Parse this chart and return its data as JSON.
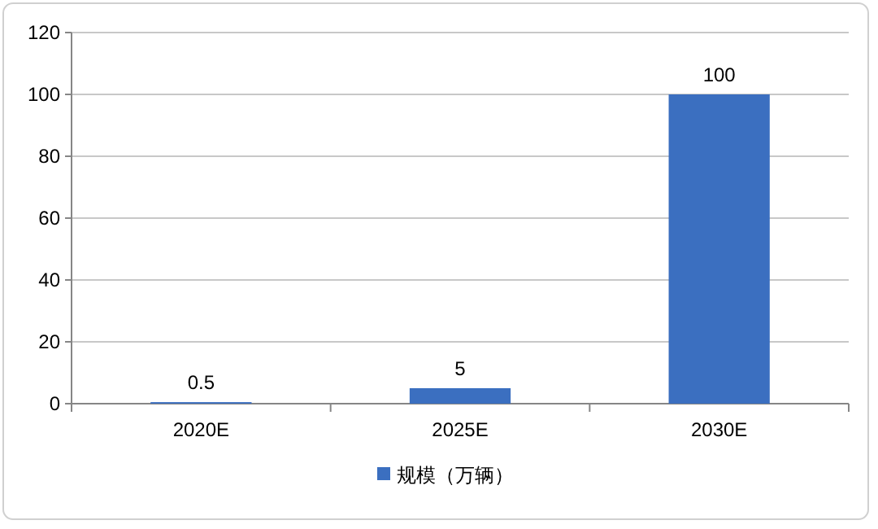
{
  "chart_data": {
    "type": "bar",
    "categories": [
      "2020E",
      "2025E",
      "2030E"
    ],
    "series": [
      {
        "name": "规模（万辆）",
        "color": "#3b6fc0",
        "values": [
          0.5,
          5,
          100
        ]
      }
    ],
    "ylim": [
      0,
      120
    ],
    "yticks": [
      0,
      20,
      40,
      60,
      80,
      100,
      120
    ],
    "grid": "y",
    "legend": "bottom",
    "data_labels": true
  }
}
